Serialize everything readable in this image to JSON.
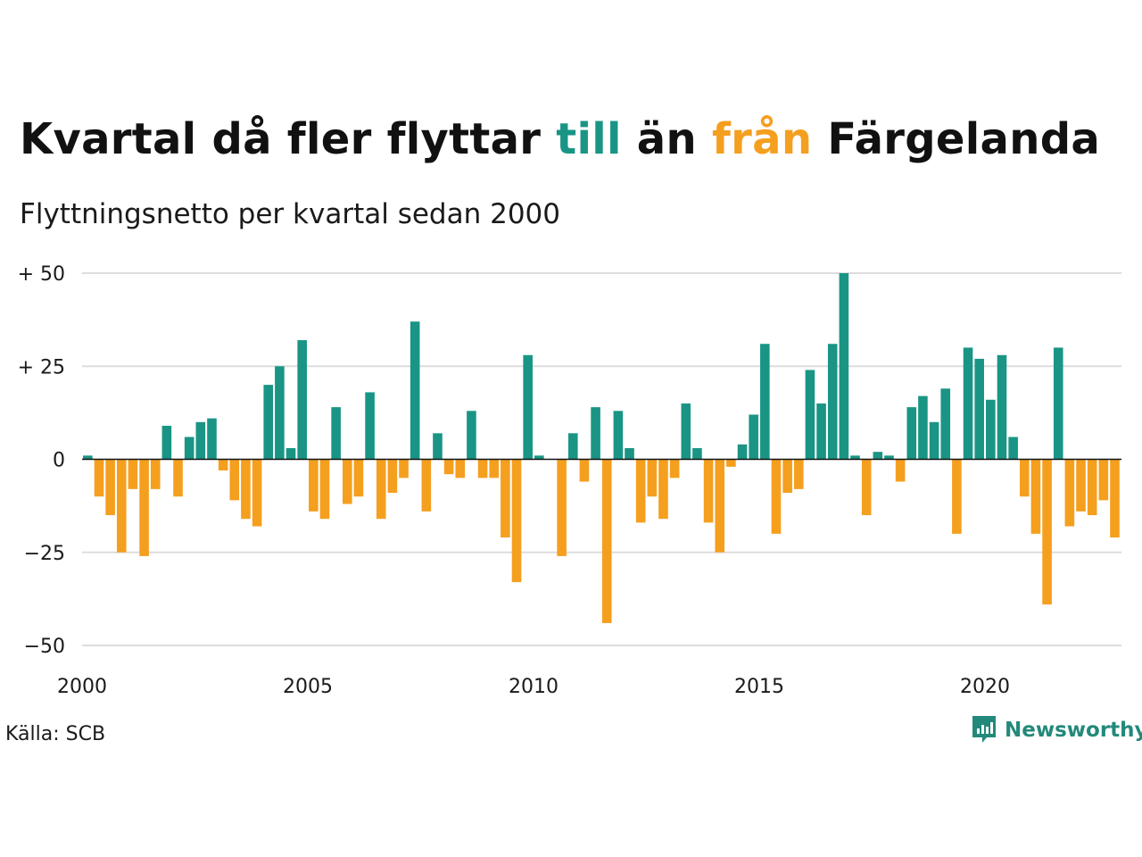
{
  "header": {
    "title_parts": [
      "Kvartal då fler flyttar ",
      "till",
      " än ",
      "från",
      " Färgelanda"
    ],
    "subtitle": "Flyttningsnetto per kvartal sedan 2000"
  },
  "footer": {
    "source": "Källa: SCB",
    "brand": "Newsworthy"
  },
  "colors": {
    "positive": "#1a9585",
    "negative": "#f59f1f",
    "grid": "#dddddd",
    "text": "#111111",
    "brand": "#23897b"
  },
  "chart_data": {
    "type": "bar",
    "title": "Kvartal då fler flyttar till än från Färgelanda",
    "subtitle": "Flyttningsnetto per kvartal sedan 2000",
    "x_start": "2000 Q1",
    "quarters_per_year": 4,
    "y_ticks": [
      50,
      25,
      0,
      -25,
      -50
    ],
    "y_tick_labels": [
      "+ 50",
      "+ 25",
      "0",
      "−25",
      "−50"
    ],
    "x_ticks": [
      "2000",
      "2005",
      "2010",
      "2015",
      "2020"
    ],
    "ylim": [
      -50,
      50
    ],
    "grid": true,
    "values": [
      1,
      -10,
      -15,
      -25,
      -8,
      -26,
      -8,
      9,
      -10,
      6,
      10,
      11,
      -3,
      -11,
      -16,
      -18,
      20,
      25,
      3,
      32,
      -14,
      -16,
      14,
      -12,
      -10,
      18,
      -16,
      -9,
      -5,
      37,
      -14,
      7,
      -4,
      -5,
      13,
      -5,
      -5,
      -21,
      -33,
      28,
      1,
      0,
      -26,
      7,
      -6,
      14,
      -44,
      13,
      3,
      -17,
      -10,
      -16,
      -5,
      15,
      3,
      -17,
      -25,
      -2,
      4,
      12,
      31,
      -20,
      -9,
      -8,
      24,
      15,
      31,
      50,
      1,
      -15,
      2,
      1,
      -6,
      14,
      17,
      10,
      19,
      -20,
      30,
      27,
      16,
      28,
      6,
      -10,
      -20,
      -39,
      30,
      -18,
      -14,
      -15,
      -11,
      -21
    ]
  }
}
